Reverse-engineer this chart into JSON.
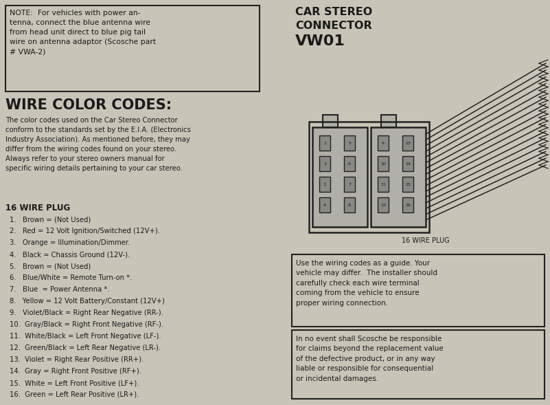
{
  "bg_color": "#c8c4b8",
  "note_text": "NOTE:  For vehicles with power an-\ntenna, connect the blue antenna wire\nfrom head unit direct to blue pig tail\nwire on antenna adaptor (Scosche part\n# VWA-2)",
  "wire_color_title": "WIRE COLOR CODES:",
  "wire_color_desc": "The color codes used on the Car Stereo Connector\nconform to the standards set by the E.I.A. (Electronics\nIndustry Association). As mentioned before, they may\ndiffer from the wiring codes found on your stereo.\nAlways refer to your stereo owners manual for\nspecific wiring details pertaining to your car stereo.",
  "plug_title": "16 WIRE PLUG",
  "wire_list": [
    "1.   Brown = (Not Used)",
    "2.   Red = 12 Volt Ignition/Switched (12V+).",
    "3.   Orange = Illumination/Dimmer.",
    "4.   Black = Chassis Ground (12V-).",
    "5.   Brown = (Not Used)",
    "6.   Blue/White = Remote Turn-on *.",
    "7.   Blue  = Power Antenna *.",
    "8.   Yellow = 12 Volt Battery/Constant (12V+)",
    "9.   Violet/Black = Right Rear Negative (RR-).",
    "10.  Gray/Black = Right Front Negative (RF-).",
    "11.  White/Black = Left Front Negative (LF-).",
    "12.  Green/Black = Left Rear Negative (LR-).",
    "13.  Violet = Right Rear Positive (RR+).",
    "14.  Gray = Right Front Positive (RF+).",
    "15.  White = Left Front Positive (LF+).",
    "16.  Green = Left Rear Positive (LR+)."
  ],
  "car_stereo_line1": "CAR STEREO",
  "car_stereo_line2": "CONNECTOR",
  "car_stereo_line3": "VW01",
  "plug_label": "16 WIRE PLUG",
  "warning1_text": "Use the wiring codes as a guide. Your\nvehicle may differ.  The installer should\ncarefully check each wire terminal\ncoming from the vehicle to ensure\nproper wiring connection.",
  "warning2_text": "In no event shall Scosche be responsible\nfor claims beyond the replacement value\nof the defective product, or in any way\nliable or responsible for consequential\nor incidental damages.",
  "pin_labels_left": [
    [
      "1",
      "5"
    ],
    [
      "2",
      "6"
    ],
    [
      "3",
      "7"
    ],
    [
      "4",
      "8"
    ]
  ],
  "pin_labels_right": [
    [
      "9",
      "13"
    ],
    [
      "10",
      "14"
    ],
    [
      "11",
      "15"
    ],
    [
      "12",
      "16"
    ]
  ]
}
